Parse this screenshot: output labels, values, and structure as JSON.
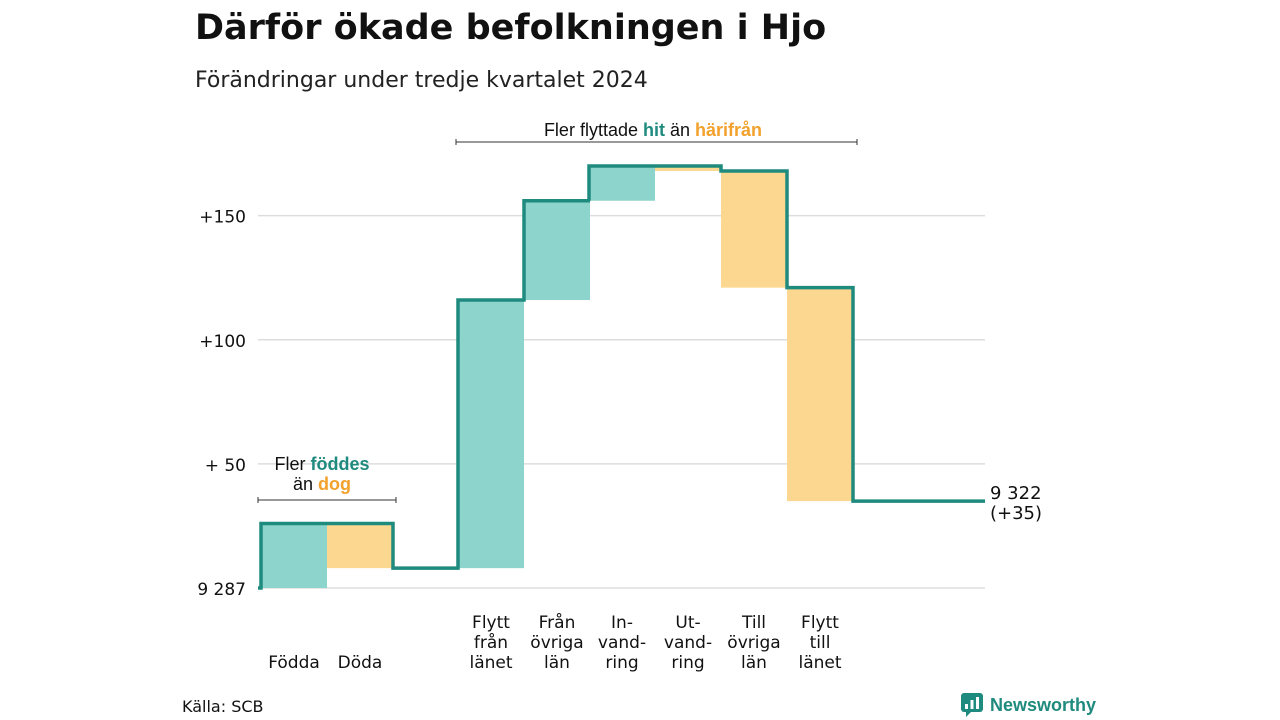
{
  "title": "Därför ökade befolkningen i Hjo",
  "subtitle": "Förändringar under tredje kvartalet 2024",
  "source": "Källa: SCB",
  "logo": {
    "text": "Newsworthy",
    "icon": "bar-chart-badge-icon"
  },
  "colors": {
    "increase": "#8dd4cc",
    "decrease": "#fbd78f",
    "line": "#1f8a7e",
    "grid": "#dddddd",
    "bracket": "#333333",
    "accent_teal": "#1f8a7e",
    "accent_orange": "#f2a12c"
  },
  "chart_data": {
    "type": "waterfall",
    "ylim": [
      0,
      170
    ],
    "yticks": [
      {
        "value": 0,
        "label": "9 287"
      },
      {
        "value": 50,
        "label": "+ 50"
      },
      {
        "value": 100,
        "label": "+100"
      },
      {
        "value": 150,
        "label": "+150"
      }
    ],
    "grid": true,
    "base_value": 9287,
    "categories": [
      {
        "label": [
          "Födda"
        ],
        "change": 26,
        "group": "natural"
      },
      {
        "label": [
          "Döda"
        ],
        "change": -18,
        "group": "natural"
      },
      {
        "label": [
          "Flytt",
          "från",
          "länet"
        ],
        "change": 108,
        "group": "migration"
      },
      {
        "label": [
          "Från",
          "övriga",
          "län"
        ],
        "change": 40,
        "group": "migration"
      },
      {
        "label": [
          "In-",
          "vand-",
          "ring"
        ],
        "change": 14,
        "group": "migration"
      },
      {
        "label": [
          "Ut-",
          "vand-",
          "ring"
        ],
        "change": -2,
        "group": "migration"
      },
      {
        "label": [
          "Till",
          "övriga",
          "län"
        ],
        "change": -47,
        "group": "migration"
      },
      {
        "label": [
          "Flytt",
          "till",
          "länet"
        ],
        "change": -86,
        "group": "migration"
      }
    ],
    "end_label": [
      "9 322",
      "(+35)"
    ],
    "end_value": 35,
    "annotations": [
      {
        "group": "natural",
        "lines": [
          [
            {
              "text": "Fler ",
              "color": "#111111",
              "bold": false
            },
            {
              "text": "föddes",
              "color": "#1f8a7e",
              "bold": true
            }
          ],
          [
            {
              "text": "än ",
              "color": "#111111",
              "bold": false
            },
            {
              "text": "dog",
              "color": "#f2a12c",
              "bold": true
            }
          ]
        ]
      },
      {
        "group": "migration",
        "lines": [
          [
            {
              "text": "Fler flyttade ",
              "color": "#111111",
              "bold": false
            },
            {
              "text": "hit",
              "color": "#1f8a7e",
              "bold": true
            },
            {
              "text": " än ",
              "color": "#111111",
              "bold": false
            },
            {
              "text": "härifrån",
              "color": "#f2a12c",
              "bold": true
            }
          ]
        ]
      }
    ]
  }
}
